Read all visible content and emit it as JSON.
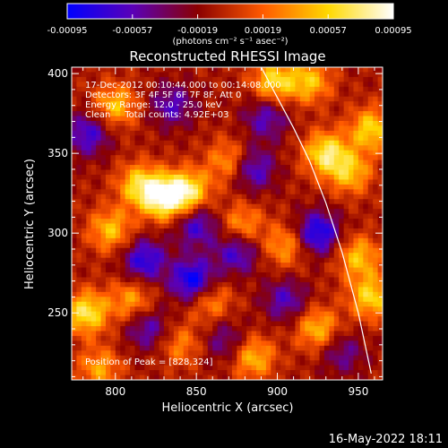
{
  "chart_data": {
    "type": "heatmap",
    "title": "Reconstructed RHESSI Image",
    "xlabel": "Heliocentric X (arcsec)",
    "ylabel": "Heliocentric Y (arcsec)",
    "xlim": [
      773,
      965
    ],
    "ylim": [
      208,
      404
    ],
    "x_ticks": [
      800,
      850,
      900,
      950
    ],
    "y_ticks": [
      250,
      300,
      350,
      400
    ],
    "colorbar": {
      "min": -0.00095,
      "max": 0.00095,
      "ticks": [
        "-0.00095",
        "-0.00057",
        "-0.00019",
        "0.00019",
        "0.00057",
        "0.00095"
      ],
      "tick_values": [
        -0.00095,
        -0.00057,
        -0.00019,
        0.00019,
        0.00057,
        0.00095
      ],
      "unit_label": "(photons cm⁻² s⁻¹ asec⁻²)",
      "colors": [
        "#0000ff",
        "#5a00b8",
        "#8a0000",
        "#ff5a00",
        "#ffd800",
        "#ffffff"
      ]
    },
    "annotations": [
      "17-Dec-2012 00:10:44.000 to 00:14:08.000",
      "Detectors: 3F 4F 5F 6F 7F 8F, Att 0",
      "Energy Range: 12.0 - 25.0 keV",
      "Clean     Total counts: 4.92E+03"
    ],
    "peak_label": "Position of Peak = [828,324]",
    "peak": [
      828,
      324
    ],
    "limb_curve": [
      [
        890,
        404
      ],
      [
        900,
        385
      ],
      [
        910,
        366
      ],
      [
        920,
        345
      ],
      [
        930,
        319
      ],
      [
        940,
        288
      ],
      [
        950,
        250
      ],
      [
        958,
        212
      ]
    ],
    "hot_spots": [
      {
        "x": 830,
        "y": 322,
        "v": 0.00095
      },
      {
        "x": 845,
        "y": 326,
        "v": 0.0008
      },
      {
        "x": 815,
        "y": 330,
        "v": 0.0007
      },
      {
        "x": 797,
        "y": 302,
        "v": 0.0006
      },
      {
        "x": 782,
        "y": 250,
        "v": 0.0008
      },
      {
        "x": 810,
        "y": 258,
        "v": 0.0005
      },
      {
        "x": 878,
        "y": 305,
        "v": 0.0005
      },
      {
        "x": 905,
        "y": 292,
        "v": 0.0005
      },
      {
        "x": 898,
        "y": 395,
        "v": 0.0007
      },
      {
        "x": 920,
        "y": 395,
        "v": 0.0006
      },
      {
        "x": 930,
        "y": 350,
        "v": 0.0008
      },
      {
        "x": 945,
        "y": 338,
        "v": 0.0006
      },
      {
        "x": 958,
        "y": 365,
        "v": 0.0007
      },
      {
        "x": 950,
        "y": 285,
        "v": 0.0006
      },
      {
        "x": 958,
        "y": 260,
        "v": 0.0007
      },
      {
        "x": 885,
        "y": 222,
        "v": 0.0006
      },
      {
        "x": 858,
        "y": 258,
        "v": 0.0005
      },
      {
        "x": 840,
        "y": 230,
        "v": 0.0004
      },
      {
        "x": 925,
        "y": 240,
        "v": 0.0006
      },
      {
        "x": 800,
        "y": 380,
        "v": 0.0006
      },
      {
        "x": 870,
        "y": 345,
        "v": 0.0005
      },
      {
        "x": 790,
        "y": 215,
        "v": 0.0005
      }
    ],
    "cold_spots": [
      {
        "x": 848,
        "y": 270,
        "v": -0.0009
      },
      {
        "x": 818,
        "y": 283,
        "v": -0.0007
      },
      {
        "x": 875,
        "y": 288,
        "v": -0.0006
      },
      {
        "x": 925,
        "y": 300,
        "v": -0.0008
      },
      {
        "x": 850,
        "y": 305,
        "v": -0.0006
      },
      {
        "x": 783,
        "y": 362,
        "v": -0.0006
      },
      {
        "x": 835,
        "y": 380,
        "v": -0.0005
      },
      {
        "x": 885,
        "y": 340,
        "v": -0.0006
      },
      {
        "x": 905,
        "y": 258,
        "v": -0.0005
      },
      {
        "x": 820,
        "y": 240,
        "v": -0.0005
      },
      {
        "x": 868,
        "y": 232,
        "v": -0.0004
      },
      {
        "x": 940,
        "y": 225,
        "v": -0.0004
      },
      {
        "x": 893,
        "y": 372,
        "v": -0.0005
      }
    ]
  },
  "footer": {
    "timestamp": "16-May-2022 18:11"
  }
}
